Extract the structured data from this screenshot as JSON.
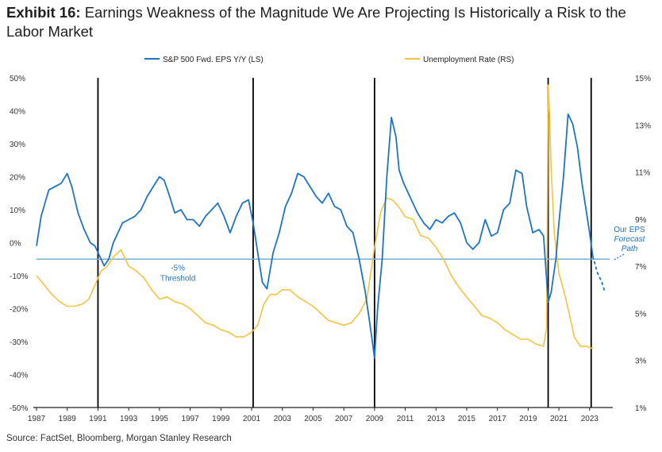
{
  "title_lead": "Exhibit 16:",
  "title_rest": "Earnings Weakness of the Magnitude We Are Projecting Is Historically a Risk to the Labor Market",
  "source": "Source: FactSet, Bloomberg, Morgan Stanley Research",
  "colors": {
    "eps": "#1f74c2",
    "unemp": "#f5c242",
    "threshold": "#7aaed3",
    "recession": "#000000"
  },
  "chart_data": {
    "type": "line",
    "title": "Earnings Weakness of the Magnitude We Are Projecting Is Historically a Risk to the Labor Market",
    "xlim": [
      1987,
      2024.3
    ],
    "x_ticks": [
      "1987",
      "1989",
      "1991",
      "1993",
      "1995",
      "1997",
      "1999",
      "2001",
      "2003",
      "2005",
      "2007",
      "2009",
      "2011",
      "2013",
      "2015",
      "2017",
      "2019",
      "2021",
      "2023"
    ],
    "ylim_left": [
      -50,
      50
    ],
    "y_ticks_left": [
      "50%",
      "40%",
      "30%",
      "20%",
      "10%",
      "0%",
      "-10%",
      "-20%",
      "-30%",
      "-40%",
      "-50%"
    ],
    "ylim_right": [
      1,
      15
    ],
    "y_ticks_right": [
      "15%",
      "13%",
      "11%",
      "9%",
      "7%",
      "5%",
      "3%",
      "1%"
    ],
    "legend": "top",
    "grid": false,
    "recession_lines": [
      1991,
      2001.1,
      2009,
      2020.3,
      2023.1
    ],
    "threshold": {
      "value": -5,
      "label_line1": "-5%",
      "label_line2": "Threshold"
    },
    "forecast_annotation": [
      "Our EPS",
      "Forecast",
      "Path"
    ],
    "series": [
      {
        "name": "S&P 500 Fwd. EPS Y/Y (LS)",
        "axis": "left",
        "x": [
          1987.0,
          1987.3,
          1987.8,
          1988.2,
          1988.6,
          1989.0,
          1989.3,
          1989.7,
          1990.1,
          1990.5,
          1990.8,
          1991.1,
          1991.4,
          1991.7,
          1992.0,
          1992.3,
          1992.6,
          1993.0,
          1993.4,
          1993.8,
          1994.2,
          1994.6,
          1995.0,
          1995.3,
          1995.6,
          1996.0,
          1996.4,
          1996.8,
          1997.2,
          1997.6,
          1998.0,
          1998.4,
          1998.8,
          1999.2,
          1999.6,
          2000.0,
          2000.4,
          2000.8,
          2001.1,
          2001.4,
          2001.7,
          2002.0,
          2002.4,
          2002.8,
          2003.2,
          2003.6,
          2004.0,
          2004.4,
          2004.8,
          2005.2,
          2005.6,
          2006.0,
          2006.4,
          2006.8,
          2007.2,
          2007.6,
          2008.0,
          2008.4,
          2008.8,
          2009.0,
          2009.2,
          2009.5,
          2009.8,
          2010.1,
          2010.4,
          2010.6,
          2010.9,
          2011.2,
          2011.5,
          2011.8,
          2012.2,
          2012.6,
          2013.0,
          2013.4,
          2013.8,
          2014.2,
          2014.6,
          2015.0,
          2015.4,
          2015.8,
          2016.2,
          2016.6,
          2017.0,
          2017.4,
          2017.8,
          2018.2,
          2018.6,
          2018.9,
          2019.3,
          2019.7,
          2020.0,
          2020.3,
          2020.5,
          2020.8,
          2021.0,
          2021.3,
          2021.6,
          2021.9,
          2022.2,
          2022.5,
          2022.8,
          2023.0,
          2023.2
        ],
        "values": [
          -1,
          8,
          16,
          17,
          18,
          21,
          17,
          9,
          4,
          0,
          -1,
          -4,
          -7,
          -5,
          0,
          3,
          6,
          7,
          8,
          10,
          14,
          17,
          20,
          19,
          15,
          9,
          10,
          7,
          7,
          5,
          8,
          10,
          12,
          8,
          3,
          8,
          12,
          13,
          6,
          -3,
          -12,
          -14,
          -3,
          3,
          11,
          15,
          21,
          20,
          17,
          14,
          12,
          15,
          11,
          10,
          5,
          3,
          -5,
          -15,
          -28,
          -35,
          -20,
          -5,
          20,
          38,
          32,
          22,
          18,
          15,
          12,
          9,
          6,
          4,
          7,
          6,
          8,
          9,
          6,
          0,
          -2,
          0,
          7,
          2,
          3,
          10,
          12,
          22,
          21,
          11,
          3,
          4,
          2,
          -18,
          -15,
          -5,
          6,
          20,
          39,
          36,
          29,
          18,
          9,
          3,
          -4
        ],
        "forecast_x": [
          2023.2,
          2023.5,
          2023.8,
          2024.0
        ],
        "forecast_values": [
          -4,
          -9,
          -12,
          -15
        ]
      },
      {
        "name": "Unemployment Rate (RS)",
        "axis": "right",
        "x": [
          1987.0,
          1987.5,
          1988.0,
          1988.5,
          1989.0,
          1989.5,
          1990.0,
          1990.4,
          1990.8,
          1991.2,
          1991.6,
          1992.0,
          1992.5,
          1993.0,
          1993.5,
          1994.0,
          1994.5,
          1995.0,
          1995.5,
          1996.0,
          1996.5,
          1997.0,
          1997.5,
          1998.0,
          1998.5,
          1999.0,
          1999.5,
          2000.0,
          2000.5,
          2001.0,
          2001.4,
          2001.8,
          2002.2,
          2002.6,
          2003.0,
          2003.5,
          2004.0,
          2004.5,
          2005.0,
          2005.5,
          2006.0,
          2006.5,
          2007.0,
          2007.5,
          2008.0,
          2008.5,
          2009.0,
          2009.4,
          2009.8,
          2010.2,
          2010.6,
          2011.0,
          2011.5,
          2012.0,
          2012.5,
          2013.0,
          2013.5,
          2014.0,
          2014.5,
          2015.0,
          2015.5,
          2016.0,
          2016.5,
          2017.0,
          2017.5,
          2018.0,
          2018.5,
          2019.0,
          2019.5,
          2020.0,
          2020.2,
          2020.3,
          2020.4,
          2020.5,
          2020.7,
          2021.0,
          2021.3,
          2021.6,
          2022.0,
          2022.4,
          2022.8,
          2023.2
        ],
        "values": [
          6.6,
          6.2,
          5.8,
          5.5,
          5.3,
          5.3,
          5.4,
          5.6,
          6.2,
          6.8,
          7.0,
          7.4,
          7.7,
          7.0,
          6.8,
          6.5,
          6.0,
          5.6,
          5.7,
          5.5,
          5.4,
          5.2,
          4.9,
          4.6,
          4.5,
          4.3,
          4.2,
          4.0,
          4.0,
          4.2,
          4.5,
          5.4,
          5.8,
          5.8,
          6.0,
          6.0,
          5.7,
          5.5,
          5.3,
          5.0,
          4.7,
          4.6,
          4.5,
          4.6,
          5.0,
          5.6,
          7.8,
          9.3,
          9.9,
          9.8,
          9.5,
          9.1,
          9.0,
          8.3,
          8.2,
          7.8,
          7.3,
          6.6,
          6.1,
          5.7,
          5.3,
          4.9,
          4.8,
          4.6,
          4.3,
          4.1,
          3.9,
          3.9,
          3.7,
          3.6,
          4.4,
          14.7,
          13.3,
          11.1,
          8.4,
          6.7,
          6.0,
          5.2,
          4.0,
          3.6,
          3.6,
          3.5
        ]
      }
    ]
  }
}
